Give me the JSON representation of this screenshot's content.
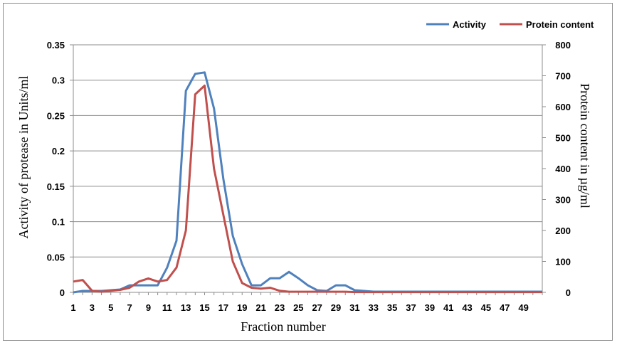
{
  "chart_data": {
    "type": "line",
    "title": "",
    "xlabel": "Fraction number",
    "ylabel_left": "Activity of protease in Units/ml",
    "ylabel_right": "Protein content in µg/ml",
    "x": [
      1,
      2,
      3,
      4,
      5,
      6,
      7,
      8,
      9,
      10,
      11,
      12,
      13,
      14,
      15,
      16,
      17,
      18,
      19,
      20,
      21,
      22,
      23,
      24,
      25,
      26,
      27,
      28,
      29,
      30,
      31,
      32,
      33,
      34,
      35,
      36,
      37,
      38,
      39,
      40,
      41,
      42,
      43,
      44,
      45,
      46,
      47,
      48,
      49,
      50,
      51
    ],
    "x_tick_labels": [
      "1",
      "3",
      "5",
      "7",
      "9",
      "11",
      "13",
      "15",
      "17",
      "19",
      "21",
      "23",
      "25",
      "27",
      "29",
      "31",
      "33",
      "35",
      "37",
      "39",
      "41",
      "43",
      "45",
      "47",
      "49"
    ],
    "y_left_ticks": [
      "0",
      "0.05",
      "0.1",
      "0.15",
      "0.2",
      "0.25",
      "0.3",
      "0.35"
    ],
    "y_right_ticks": [
      "0",
      "100",
      "200",
      "300",
      "400",
      "500",
      "600",
      "700",
      "800"
    ],
    "ylim_left": [
      0,
      0.35
    ],
    "ylim_right": [
      0,
      800
    ],
    "grid": "horizontal",
    "legend_position": "top-right",
    "series": [
      {
        "name": "Activity",
        "axis": "left",
        "color": "#4f81bd",
        "values": [
          0,
          0.002,
          0.002,
          0.002,
          0.003,
          0.004,
          0.01,
          0.01,
          0.01,
          0.01,
          0.035,
          0.073,
          0.285,
          0.309,
          0.311,
          0.26,
          0.16,
          0.08,
          0.04,
          0.01,
          0.01,
          0.02,
          0.02,
          0.029,
          0.02,
          0.01,
          0.003,
          0.002,
          0.01,
          0.01,
          0.003,
          0.002,
          0.001,
          0.001,
          0.001,
          0.001,
          0.001,
          0.001,
          0.001,
          0.001,
          0.001,
          0.001,
          0.001,
          0.001,
          0.001,
          0.001,
          0.001,
          0.001,
          0.001,
          0.001,
          0.001
        ]
      },
      {
        "name": "Protein content",
        "axis": "right",
        "color": "#c0504d",
        "values": [
          35,
          40,
          5,
          2,
          5,
          8,
          15,
          35,
          45,
          35,
          40,
          80,
          200,
          640,
          668,
          400,
          250,
          100,
          30,
          15,
          12,
          15,
          5,
          2,
          2,
          2,
          2,
          2,
          2,
          2,
          1,
          1,
          1,
          1,
          1,
          1,
          1,
          1,
          1,
          1,
          1,
          1,
          1,
          1,
          1,
          1,
          1,
          1,
          1,
          1,
          1
        ]
      }
    ]
  }
}
